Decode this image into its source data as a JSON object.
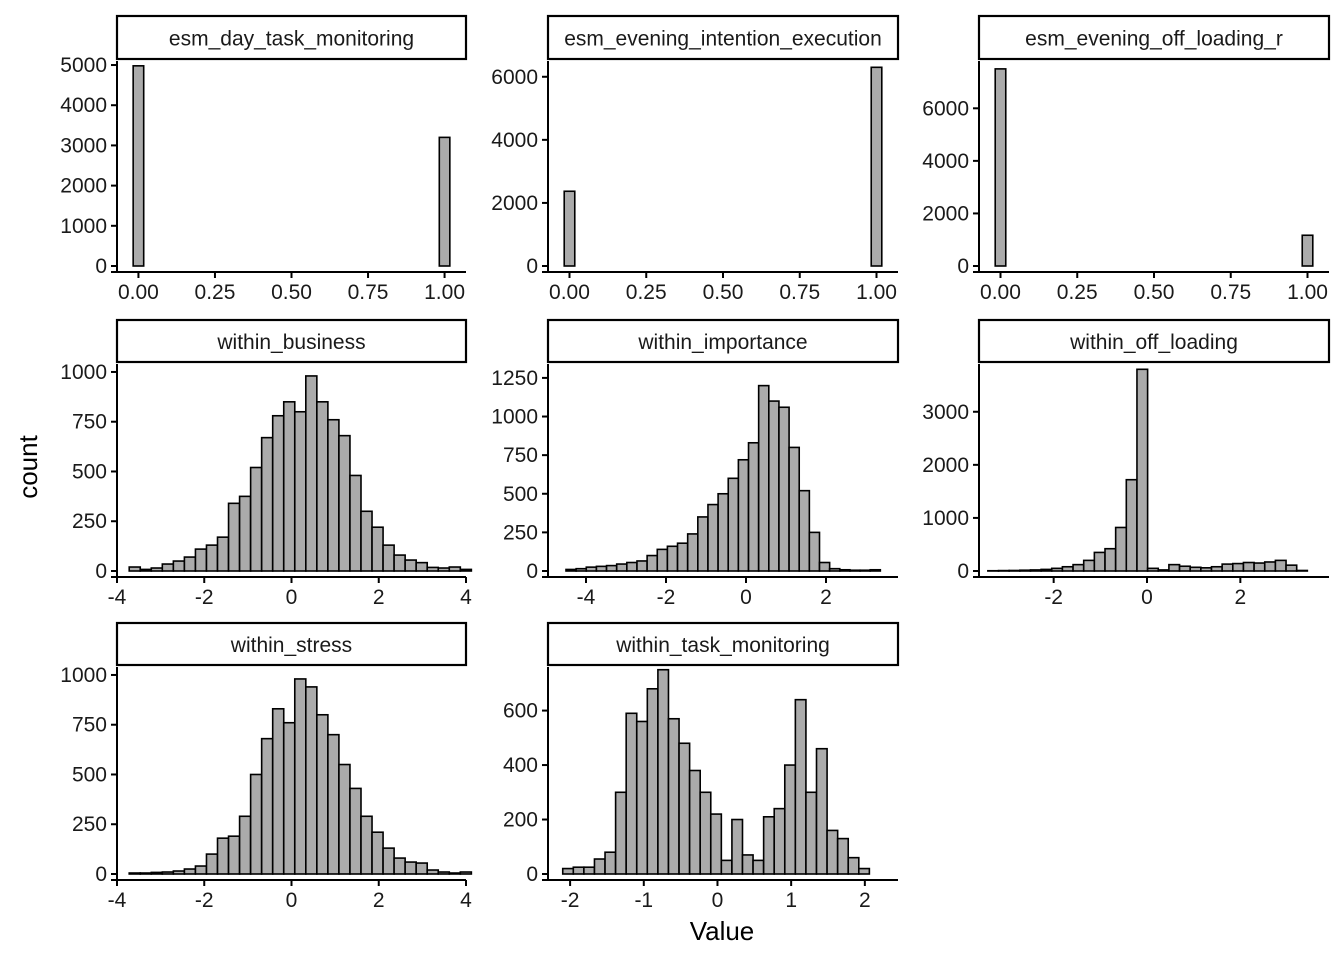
{
  "chart_data": {
    "type": "bar",
    "subtype": "faceted-histogram",
    "xlabel": "Value",
    "ylabel": "count",
    "colors": {
      "bar_fill": "#ababab",
      "bar_stroke": "#000000",
      "strip_fill": "#ffffff",
      "axis": "#000000"
    },
    "panels": [
      {
        "title": "esm_day_task_monitoring",
        "xlim": [
          -0.07,
          1.07
        ],
        "ylim": [
          0,
          5100
        ],
        "x_ticks": [
          0,
          0.25,
          0.5,
          0.75,
          1
        ],
        "x_tick_labels": [
          "0.00",
          "0.25",
          "0.50",
          "0.75",
          "1.00"
        ],
        "y_ticks": [
          0,
          1000,
          2000,
          3000,
          4000,
          5000
        ],
        "y_tick_labels": [
          "0",
          "1000",
          "2000",
          "3000",
          "4000",
          "5000"
        ],
        "bins": [
          {
            "x0": -0.0172,
            "x1": 0.0172,
            "count": 4980
          },
          {
            "x0": 0.9828,
            "x1": 1.0172,
            "count": 3200
          }
        ]
      },
      {
        "title": "esm_evening_intention_execution",
        "xlim": [
          -0.07,
          1.07
        ],
        "ylim": [
          0,
          6500
        ],
        "x_ticks": [
          0,
          0.25,
          0.5,
          0.75,
          1
        ],
        "x_tick_labels": [
          "0.00",
          "0.25",
          "0.50",
          "0.75",
          "1.00"
        ],
        "y_ticks": [
          0,
          2000,
          4000,
          6000
        ],
        "y_tick_labels": [
          "0",
          "2000",
          "4000",
          "6000"
        ],
        "bins": [
          {
            "x0": -0.0172,
            "x1": 0.0172,
            "count": 2370
          },
          {
            "x0": 0.9828,
            "x1": 1.0172,
            "count": 6300
          }
        ]
      },
      {
        "title": "esm_evening_off_loading_r",
        "xlim": [
          -0.07,
          1.07
        ],
        "ylim": [
          0,
          7800
        ],
        "x_ticks": [
          0,
          0.25,
          0.5,
          0.75,
          1
        ],
        "x_tick_labels": [
          "0.00",
          "0.25",
          "0.50",
          "0.75",
          "1.00"
        ],
        "y_ticks": [
          0,
          2000,
          4000,
          6000
        ],
        "y_tick_labels": [
          "0",
          "2000",
          "4000",
          "6000"
        ],
        "bins": [
          {
            "x0": -0.0172,
            "x1": 0.0172,
            "count": 7500
          },
          {
            "x0": 0.9828,
            "x1": 1.0172,
            "count": 1170
          }
        ]
      },
      {
        "title": "within_business",
        "xlim": [
          -4.0,
          4.0
        ],
        "ylim": [
          0,
          1040
        ],
        "x_ticks": [
          -4,
          -2,
          0,
          2,
          4
        ],
        "x_tick_labels": [
          "-4",
          "-2",
          "0",
          "2",
          "4"
        ],
        "y_ticks": [
          0,
          250,
          500,
          750,
          1000
        ],
        "y_tick_labels": [
          "0",
          "250",
          "500",
          "750",
          "1000"
        ],
        "bin_start": -3.72,
        "bin_width": 0.253,
        "counts": [
          20,
          8,
          15,
          35,
          50,
          70,
          110,
          130,
          170,
          340,
          375,
          520,
          670,
          780,
          850,
          800,
          980,
          850,
          760,
          680,
          480,
          300,
          220,
          130,
          80,
          55,
          42,
          18,
          15,
          20,
          8
        ]
      },
      {
        "title": "within_importance",
        "xlim": [
          -4.95,
          3.8
        ],
        "ylim": [
          0,
          1340
        ],
        "x_ticks": [
          -4,
          -2,
          0,
          2
        ],
        "x_tick_labels": [
          "-4",
          "-2",
          "0",
          "2"
        ],
        "y_ticks": [
          0,
          250,
          500,
          750,
          1000,
          1250
        ],
        "y_tick_labels": [
          "0",
          "250",
          "500",
          "750",
          "1000",
          "1250"
        ],
        "bin_start": -4.5,
        "bin_width": 0.2535,
        "counts": [
          10,
          15,
          25,
          30,
          35,
          45,
          55,
          65,
          100,
          140,
          160,
          180,
          240,
          350,
          430,
          500,
          600,
          720,
          830,
          1200,
          1100,
          1060,
          800,
          520,
          250,
          55,
          15,
          8,
          5,
          5,
          8
        ]
      },
      {
        "title": "within_off_loading",
        "xlim": [
          -3.6,
          3.9
        ],
        "ylim": [
          0,
          3900
        ],
        "x_ticks": [
          -2,
          0,
          2
        ],
        "x_tick_labels": [
          "-2",
          "0",
          "2"
        ],
        "y_ticks": [
          0,
          1000,
          2000,
          3000
        ],
        "y_tick_labels": [
          "0",
          "1000",
          "2000",
          "3000"
        ],
        "bin_start": -3.41,
        "bin_width": 0.2282,
        "counts": [
          5,
          8,
          10,
          15,
          20,
          30,
          50,
          80,
          120,
          200,
          350,
          420,
          820,
          1720,
          3800,
          50,
          20,
          120,
          90,
          70,
          60,
          80,
          130,
          140,
          160,
          150,
          170,
          200,
          110,
          10
        ]
      },
      {
        "title": "within_stress",
        "xlim": [
          -4.0,
          4.0
        ],
        "ylim": [
          0,
          1040
        ],
        "x_ticks": [
          -4,
          -2,
          0,
          2,
          4
        ],
        "x_tick_labels": [
          "-4",
          "-2",
          "0",
          "2",
          "4"
        ],
        "y_ticks": [
          0,
          250,
          500,
          750,
          1000
        ],
        "y_tick_labels": [
          "0",
          "250",
          "500",
          "750",
          "1000"
        ],
        "bin_start": -3.72,
        "bin_width": 0.253,
        "counts": [
          5,
          5,
          8,
          10,
          15,
          25,
          40,
          100,
          180,
          190,
          290,
          500,
          680,
          830,
          760,
          980,
          940,
          800,
          700,
          550,
          430,
          290,
          210,
          130,
          80,
          60,
          55,
          20,
          10,
          5,
          10
        ]
      },
      {
        "title": "within_task_monitoring",
        "xlim": [
          -2.3,
          2.45
        ],
        "ylim": [
          0,
          760
        ],
        "x_ticks": [
          -2,
          -1,
          0,
          1,
          2
        ],
        "x_tick_labels": [
          "-2",
          "-1",
          "0",
          "1",
          "2"
        ],
        "y_ticks": [
          0,
          200,
          400,
          600
        ],
        "y_tick_labels": [
          "0",
          "200",
          "400",
          "600"
        ],
        "bin_start": -2.1,
        "bin_width": 0.1435,
        "counts": [
          20,
          25,
          25,
          55,
          80,
          300,
          590,
          560,
          680,
          750,
          570,
          480,
          380,
          300,
          220,
          50,
          200,
          70,
          50,
          210,
          240,
          400,
          640,
          300,
          460,
          160,
          130,
          60,
          20
        ]
      }
    ]
  }
}
